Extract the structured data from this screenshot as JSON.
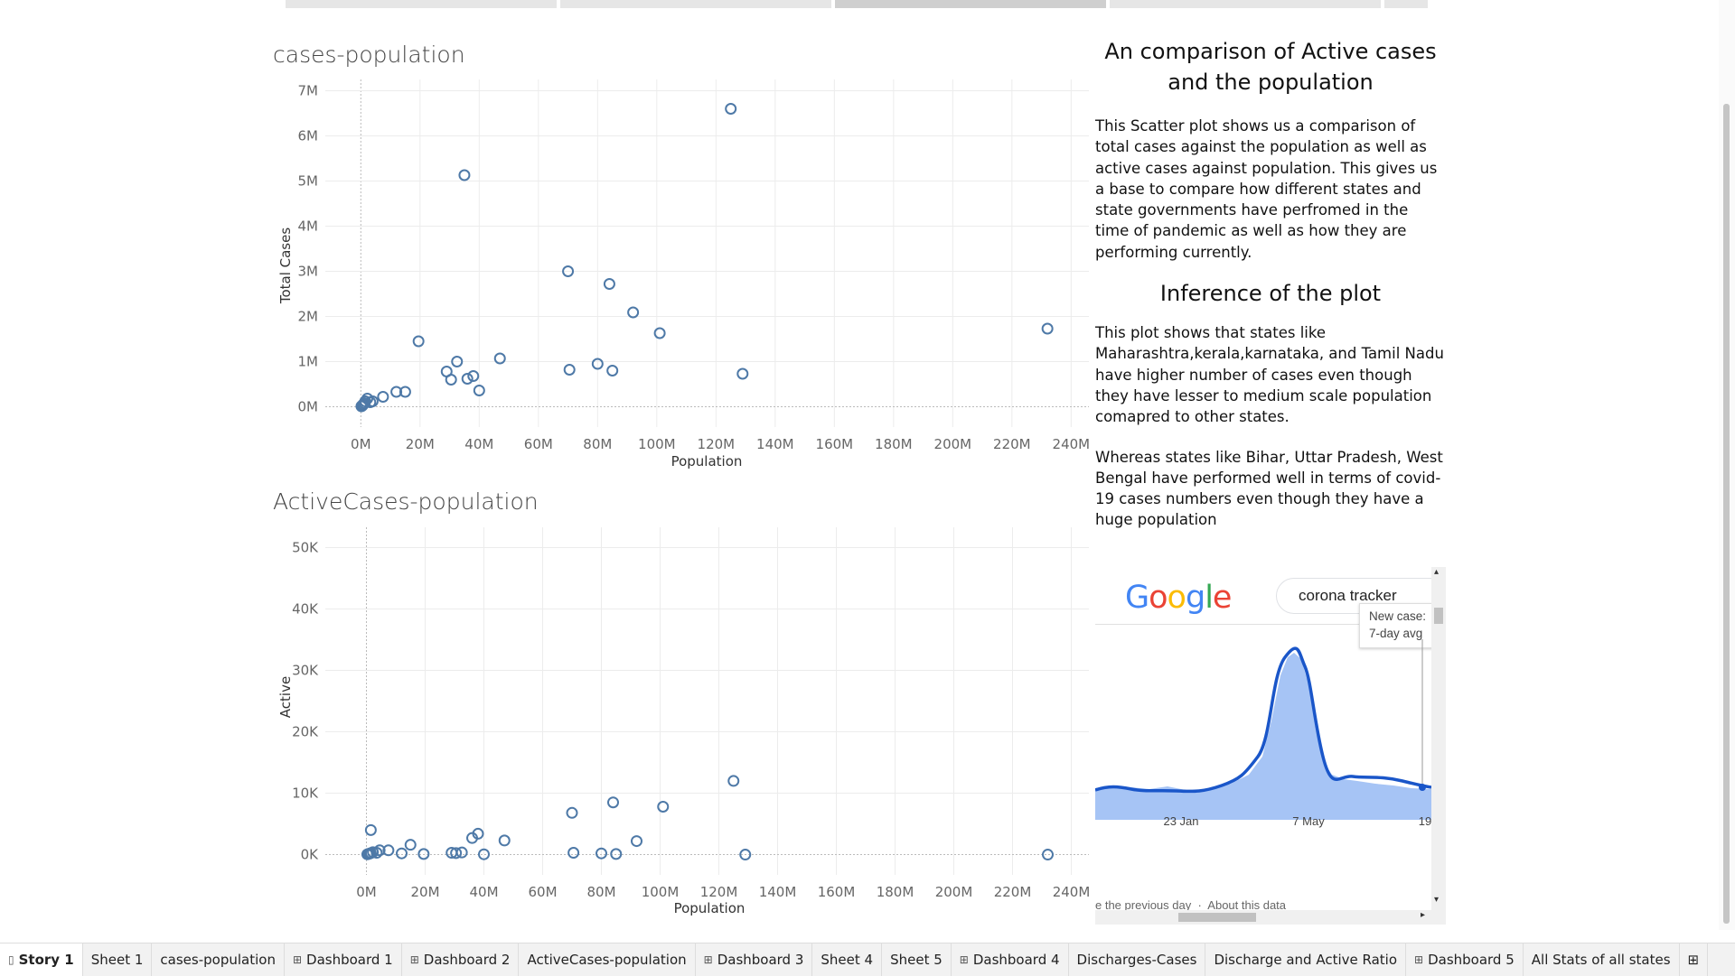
{
  "header_tabs": [
    "",
    "",
    "",
    "",
    ""
  ],
  "charts": {
    "total": {
      "title": "cases-population",
      "xlabel": "Population",
      "ylabel": "Total Cases",
      "xticks": [
        "0M",
        "20M",
        "40M",
        "60M",
        "80M",
        "100M",
        "120M",
        "140M",
        "160M",
        "180M",
        "200M",
        "220M",
        "240M"
      ],
      "yticks": [
        "0M",
        "1M",
        "2M",
        "3M",
        "4M",
        "5M",
        "6M",
        "7M"
      ]
    },
    "active": {
      "title": "ActiveCases-population",
      "xlabel": "Population",
      "ylabel": "Active",
      "xticks": [
        "0M",
        "20M",
        "40M",
        "60M",
        "80M",
        "100M",
        "120M",
        "140M",
        "160M",
        "180M",
        "200M",
        "220M",
        "240M"
      ],
      "yticks": [
        "0K",
        "10K",
        "20K",
        "30K",
        "40K",
        "50K"
      ]
    }
  },
  "chart_data": [
    {
      "type": "scatter",
      "title": "cases-population",
      "xlabel": "Population",
      "ylabel": "Total Cases",
      "xlim": [
        -12,
        246
      ],
      "ylim": [
        -0.45,
        7.25
      ],
      "x_unit": "M",
      "y_unit": "M",
      "points": [
        [
          0.2,
          0.01
        ],
        [
          0.4,
          0.02
        ],
        [
          0.6,
          0.03
        ],
        [
          0.8,
          0.05
        ],
        [
          1.2,
          0.08
        ],
        [
          1.5,
          0.12
        ],
        [
          2.2,
          0.18
        ],
        [
          3.2,
          0.1
        ],
        [
          4,
          0.12
        ],
        [
          7.5,
          0.22
        ],
        [
          12,
          0.33
        ],
        [
          15,
          0.33
        ],
        [
          19.5,
          1.45
        ],
        [
          29,
          0.78
        ],
        [
          30.5,
          0.6
        ],
        [
          32.5,
          1.0
        ],
        [
          35,
          5.13
        ],
        [
          36,
          0.62
        ],
        [
          38,
          0.68
        ],
        [
          40,
          0.36
        ],
        [
          47,
          1.07
        ],
        [
          70,
          3.0
        ],
        [
          70.5,
          0.82
        ],
        [
          80,
          0.95
        ],
        [
          84,
          2.72
        ],
        [
          85,
          0.8
        ],
        [
          92,
          2.09
        ],
        [
          101,
          1.63
        ],
        [
          125,
          6.6
        ],
        [
          129,
          0.73
        ],
        [
          232,
          1.73
        ]
      ]
    },
    {
      "type": "scatter",
      "title": "ActiveCases-population",
      "xlabel": "Population",
      "ylabel": "Active",
      "xlim": [
        -14,
        246
      ],
      "ylim": [
        -3300,
        53300
      ],
      "x_unit": "M",
      "y_unit": "K",
      "points": [
        [
          0.3,
          50
        ],
        [
          0.6,
          100
        ],
        [
          1,
          150
        ],
        [
          1.5,
          250
        ],
        [
          2.2,
          400
        ],
        [
          1.5,
          4000
        ],
        [
          3.5,
          300
        ],
        [
          4.5,
          700
        ],
        [
          7.5,
          700
        ],
        [
          12,
          200
        ],
        [
          15,
          1600
        ],
        [
          19.5,
          100
        ],
        [
          29,
          300
        ],
        [
          30.5,
          250
        ],
        [
          32.5,
          350
        ],
        [
          36,
          2700
        ],
        [
          38,
          3400
        ],
        [
          40,
          50
        ],
        [
          47,
          2300
        ],
        [
          70,
          6800
        ],
        [
          70.5,
          300
        ],
        [
          80,
          200
        ],
        [
          84,
          8500
        ],
        [
          85,
          100
        ],
        [
          92,
          2200
        ],
        [
          101,
          7800
        ],
        [
          125,
          12000
        ],
        [
          129,
          0
        ],
        [
          232,
          0
        ]
      ]
    }
  ],
  "info": {
    "heading1": "An comparison of Active cases and the population",
    "para1": "This Scatter plot shows us a comparison of total cases against the population as well as active cases against population. This gives us a base to compare how different states and state governments have perfromed in the time of pandemic as well as how they are performing currently.",
    "heading2": "Inference of the plot",
    "para2": "This plot shows that states like Maharashtra,kerala,karnataka, and Tamil Nadu have higher number of cases even though they have lesser to medium scale population comapred to other states.",
    "para3": "Whereas states like Bihar, Uttar Pradesh, West Bengal have performed well in terms of covid-19 cases numbers even though they have a huge population"
  },
  "web": {
    "logo": "Google",
    "search_value": "corona tracker",
    "tooltip_line1": "New case:",
    "tooltip_line2": "7-day avg",
    "xticks": [
      "23 Jan",
      "7 May",
      "19"
    ],
    "footer": "e the previous day  ·  About this data"
  },
  "sheet_tabs": [
    {
      "label": "Story 1",
      "icon": "story-icon",
      "active": true
    },
    {
      "label": "Sheet 1",
      "icon": "",
      "active": false
    },
    {
      "label": "cases-population",
      "icon": "",
      "active": false
    },
    {
      "label": "Dashboard 1",
      "icon": "dashboard-icon",
      "active": false
    },
    {
      "label": "Dashboard 2",
      "icon": "dashboard-icon",
      "active": false
    },
    {
      "label": "ActiveCases-population",
      "icon": "",
      "active": false
    },
    {
      "label": "Dashboard 3",
      "icon": "dashboard-icon",
      "active": false
    },
    {
      "label": "Sheet 4",
      "icon": "",
      "active": false
    },
    {
      "label": "Sheet 5",
      "icon": "",
      "active": false
    },
    {
      "label": "Dashboard 4",
      "icon": "dashboard-icon",
      "active": false
    },
    {
      "label": "Discharges-Cases",
      "icon": "",
      "active": false
    },
    {
      "label": "Discharge and Active Ratio",
      "icon": "",
      "active": false
    },
    {
      "label": "Dashboard 5",
      "icon": "dashboard-icon",
      "active": false
    },
    {
      "label": "All Stats of all states",
      "icon": "",
      "active": false
    }
  ],
  "colors": {
    "point": "#4e79a7",
    "chart_line": "#1a56c9",
    "chart_fill": "#a6c4f5"
  }
}
